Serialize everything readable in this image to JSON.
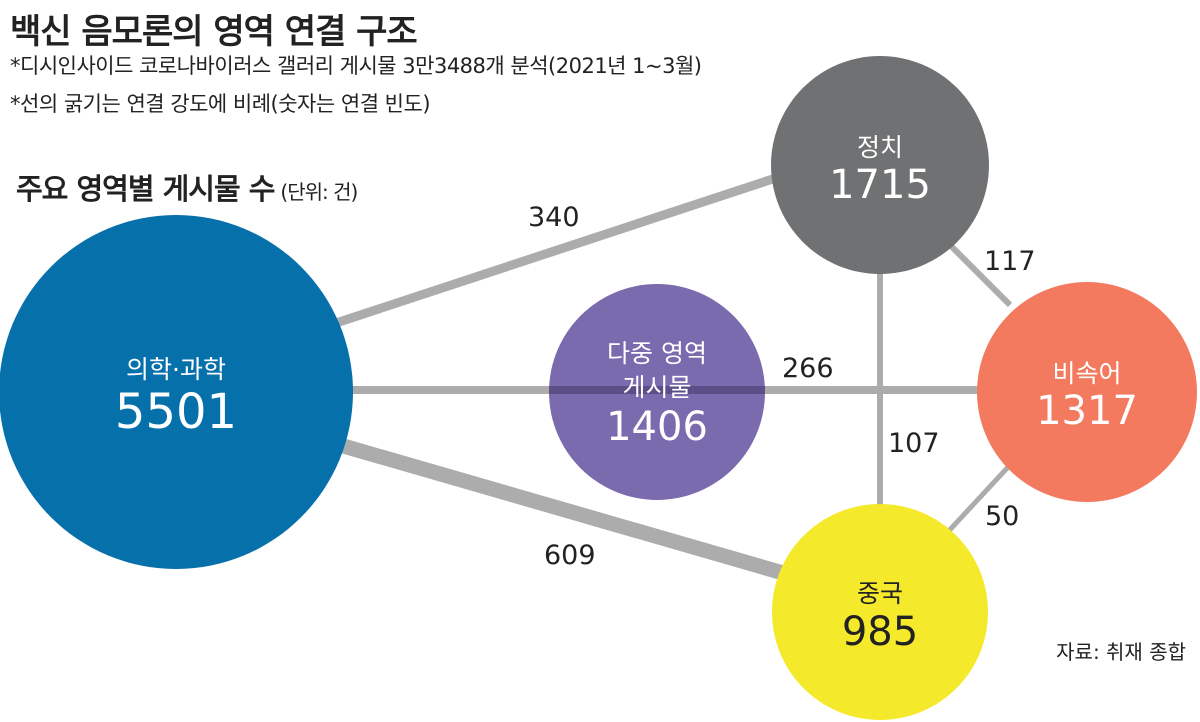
{
  "header": {
    "title": "백신 음모론의 영역 연결 구조",
    "note1": "*디시인사이드 코로나바이러스 갤러리 게시물 3만3488개 분석(2021년 1~3월)",
    "note2": "*선의 굵기는 연결 강도에 비례(숫자는 연결 빈도)"
  },
  "subtitle": {
    "text": "주요 영역별 게시물 수",
    "unit": "(단위: 건)"
  },
  "source": "자료: 취재 종합",
  "colors": {
    "medical": "#0670ab",
    "multi": "#7a6aae",
    "politics": "#707173",
    "slang": "#f37a5f",
    "china": "#f5e92b",
    "edge": "#acacac"
  },
  "nodes": {
    "medical": {
      "name": "의학·과학",
      "value": "5501"
    },
    "multi": {
      "name_line1": "다중 영역",
      "name_line2": "게시물",
      "value": "1406"
    },
    "politics": {
      "name": "정치",
      "value": "1715"
    },
    "slang": {
      "name": "비속어",
      "value": "1317"
    },
    "china": {
      "name": "중국",
      "value": "985"
    }
  },
  "edges": {
    "medical_politics": "340",
    "medical_china": "609",
    "medical_slang": "266",
    "politics_slang": "117",
    "politics_china": "107",
    "china_slang": "50"
  }
}
